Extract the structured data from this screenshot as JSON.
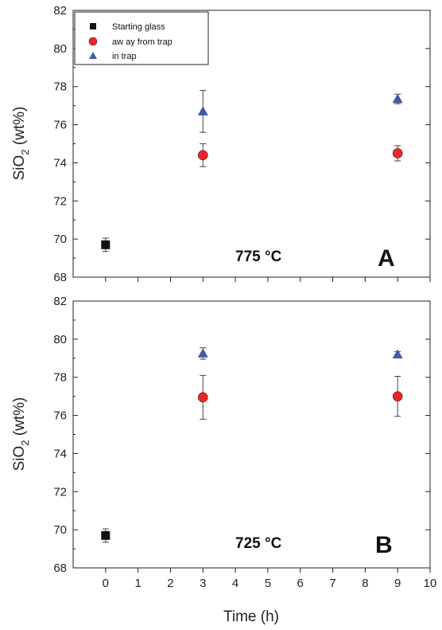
{
  "chart_data": {
    "type": "scatter",
    "xlabel": "Time (h)",
    "ylabel_main": "SiO",
    "ylabel_sub": "2",
    "ylabel_unit": " (wt%)",
    "xlim": [
      -1,
      10
    ],
    "x_ticks": [
      0,
      1,
      2,
      3,
      4,
      5,
      6,
      7,
      8,
      9,
      10
    ],
    "x_tick_labels": [
      "0",
      "1",
      "2",
      "3",
      "4",
      "5",
      "6",
      "7",
      "8",
      "9",
      "10"
    ],
    "ylim": [
      68,
      82
    ],
    "y_ticks": [
      68,
      70,
      72,
      74,
      76,
      78,
      80,
      82
    ],
    "y_tick_labels": [
      "68",
      "70",
      "72",
      "74",
      "76",
      "78",
      "80",
      "82"
    ],
    "legend": {
      "placement": "top-left",
      "entries": [
        {
          "label": "Starting glass",
          "marker": "square",
          "color": "#111111"
        },
        {
          "label": "aw ay from trap",
          "marker": "circle",
          "color": "#e8262a"
        },
        {
          "label": "in trap",
          "marker": "triangle",
          "color": "#3f5ba9"
        }
      ]
    },
    "panels": [
      {
        "letter": "A",
        "temperature": "775 °C",
        "series": [
          {
            "marker": "square",
            "color": "#111111",
            "points": [
              {
                "x": 0,
                "y": 69.7,
                "err": 0.35
              }
            ]
          },
          {
            "marker": "circle",
            "color": "#e8262a",
            "points": [
              {
                "x": 3,
                "y": 74.4,
                "err": 0.6
              },
              {
                "x": 9,
                "y": 74.5,
                "err": 0.4
              }
            ]
          },
          {
            "marker": "triangle",
            "color": "#3f5ba9",
            "points": [
              {
                "x": 3,
                "y": 76.7,
                "err": 1.1
              },
              {
                "x": 9,
                "y": 77.35,
                "err": 0.25
              }
            ]
          }
        ]
      },
      {
        "letter": "B",
        "temperature": "725 °C",
        "series": [
          {
            "marker": "square",
            "color": "#111111",
            "points": [
              {
                "x": 0,
                "y": 69.7,
                "err": 0.35
              }
            ]
          },
          {
            "marker": "circle",
            "color": "#e8262a",
            "points": [
              {
                "x": 3,
                "y": 76.95,
                "err": 1.15
              },
              {
                "x": 9,
                "y": 77.0,
                "err": 1.05
              }
            ]
          },
          {
            "marker": "triangle",
            "color": "#3f5ba9",
            "points": [
              {
                "x": 3,
                "y": 79.25,
                "err": 0.3
              },
              {
                "x": 9,
                "y": 79.2,
                "err": 0.15
              }
            ]
          }
        ]
      }
    ]
  }
}
